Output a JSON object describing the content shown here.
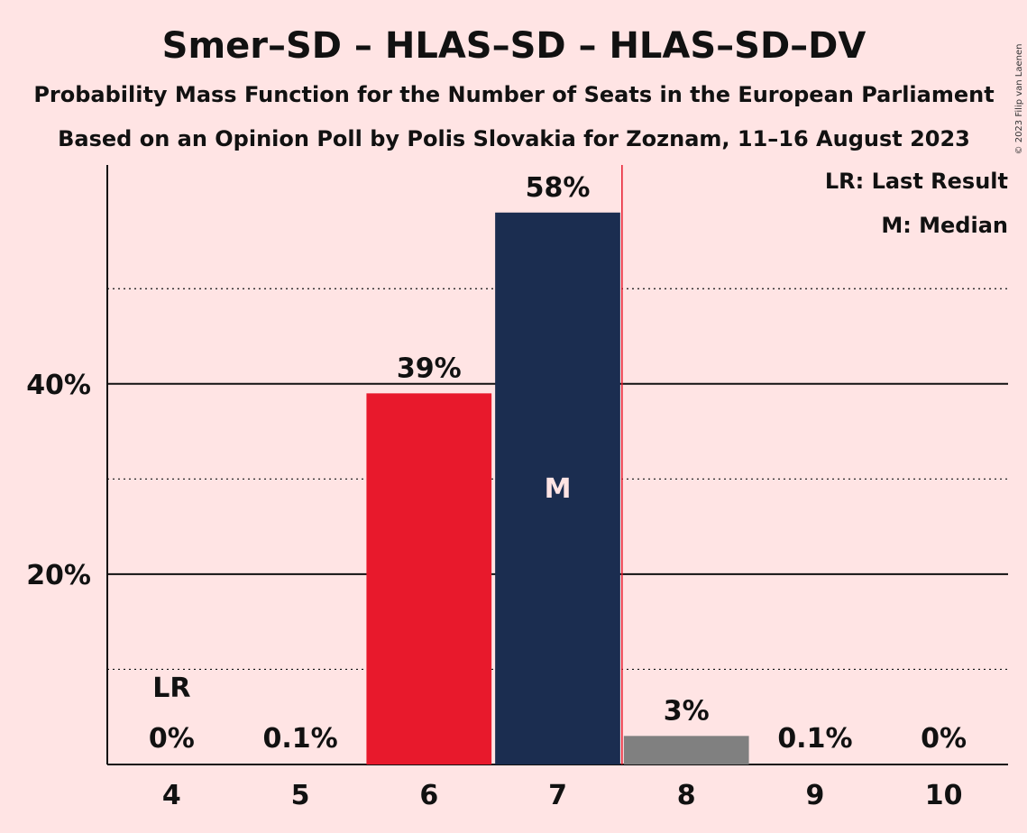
{
  "chart_data": {
    "type": "bar",
    "title": "Smer–SD – HLAS–SD – HLAS–SD–DV",
    "subtitle": "Probability Mass Function for the Number of Seats in the European Parliament",
    "subtitle2": "Based on an Opinion Poll by Polis Slovakia for Zoznam, 11–16 August 2023",
    "credit": "© 2023 Filip van Laenen",
    "categories": [
      "4",
      "5",
      "6",
      "7",
      "8",
      "9",
      "10"
    ],
    "values": [
      0,
      0.1,
      39,
      58,
      3,
      0.1,
      0
    ],
    "data_labels": [
      "0%",
      "0.1%",
      "39%",
      "58%",
      "3%",
      "0.1%",
      "0%"
    ],
    "bar_colors": [
      "#ffe4e4",
      "#ffe4e4",
      "#e8192c",
      "#1b2d50",
      "#808080",
      "#ffe4e4",
      "#ffe4e4"
    ],
    "ylim": [
      0,
      63
    ],
    "yticks": [
      {
        "value": 20,
        "label": "20%"
      },
      {
        "value": 40,
        "label": "40%"
      }
    ],
    "dotted_gridlines": [
      10,
      30,
      50
    ],
    "last_result": {
      "category": "4",
      "label": "LR"
    },
    "median": {
      "category": "7",
      "label": "M"
    },
    "majority_line_after": "7",
    "legend": [
      "LR: Last Result",
      "M: Median"
    ],
    "legend_position": "top-right",
    "colors": {
      "background": "#ffe4e4",
      "majority_line": "#e8192c",
      "text": "#111111",
      "median_text": "#ffe4e4"
    }
  }
}
